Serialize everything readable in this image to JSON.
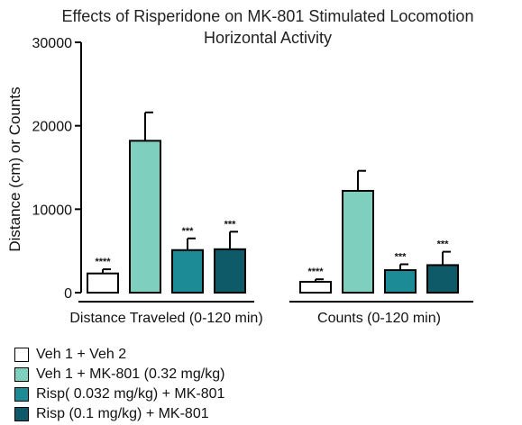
{
  "chart_data": {
    "type": "bar",
    "title": [
      "Effects of Risperidone on MK-801 Stimulated Locomotion",
      "Horizontal Activity"
    ],
    "ylabel": "Distance (cm) or Counts",
    "ylim": [
      0,
      30000
    ],
    "yticks": [
      0,
      10000,
      20000,
      30000
    ],
    "grid": false,
    "legend_position": "bottom-left",
    "categories": [
      "Distance Traveled (0-120 min)",
      "Counts (0-120 min)"
    ],
    "series": [
      {
        "name": "Veh 1 + Veh 2",
        "color": "#ffffff",
        "values": [
          2300,
          1300
        ],
        "errors": [
          500,
          300
        ],
        "significance": [
          "****",
          "****"
        ]
      },
      {
        "name": "Veh 1 + MK-801 (0.32 mg/kg)",
        "color": "#7ecfbd",
        "values": [
          18200,
          12200
        ],
        "errors": [
          3400,
          2400
        ],
        "significance": [
          "",
          ""
        ]
      },
      {
        "name": "Risp( 0.032 mg/kg) + MK-801",
        "color": "#1d8b96",
        "values": [
          5100,
          2700
        ],
        "errors": [
          1400,
          700
        ],
        "significance": [
          "***",
          "***"
        ]
      },
      {
        "name": "Risp (0.1 mg/kg) + MK-801",
        "color": "#0e5a68",
        "values": [
          5200,
          3300
        ],
        "errors": [
          2100,
          1600
        ],
        "significance": [
          "***",
          "***"
        ]
      }
    ]
  }
}
